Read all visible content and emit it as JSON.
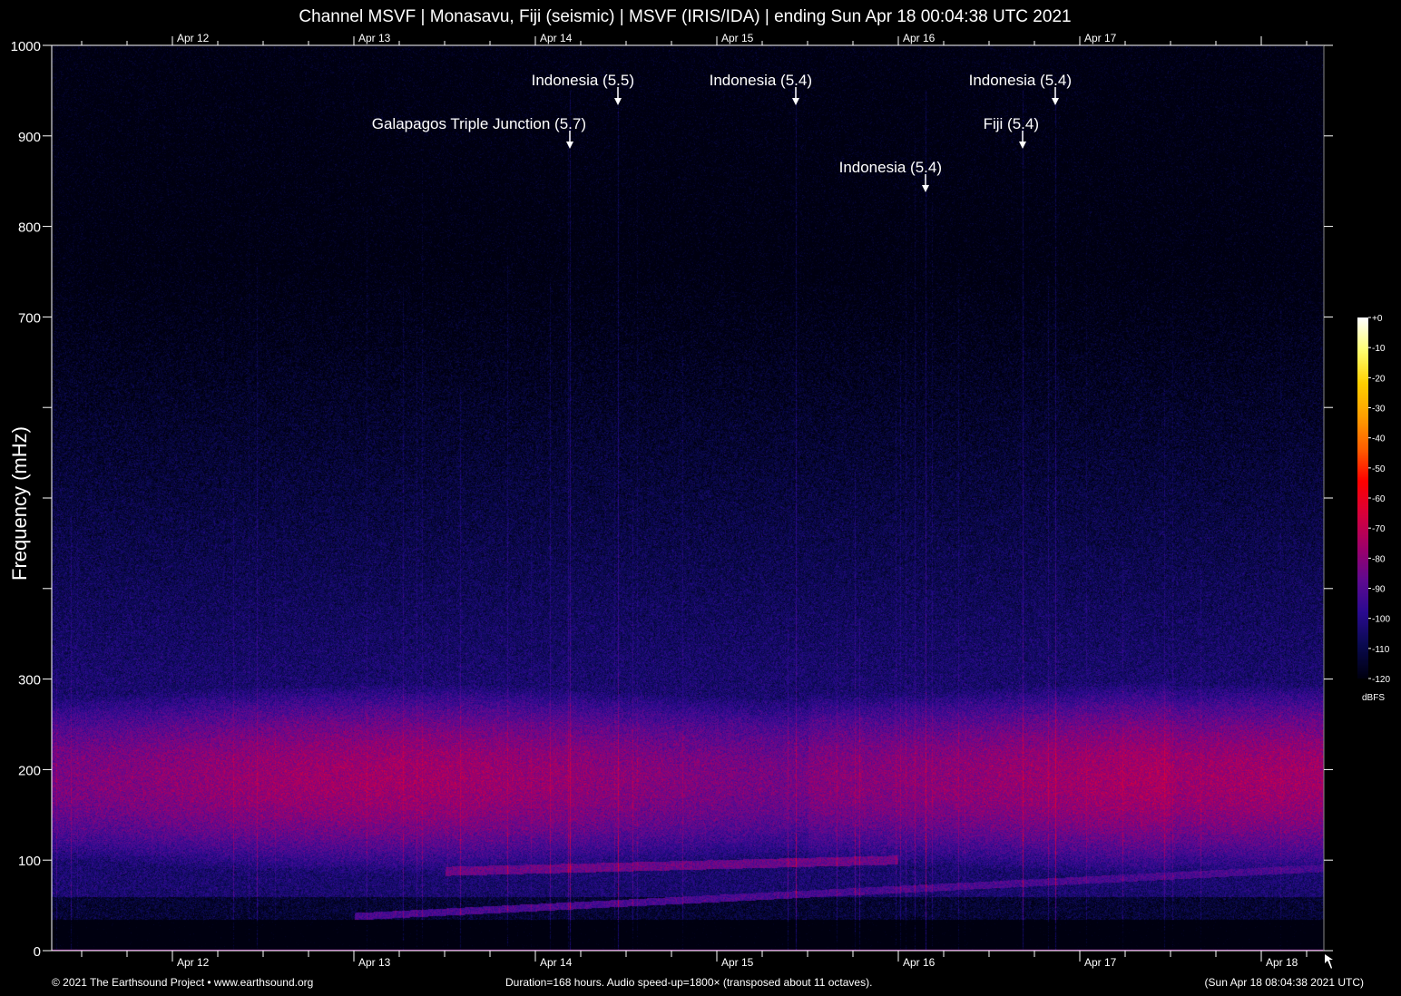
{
  "title": "Channel MSVF | Monasavu, Fiji (seismic) | MSVF (IRIS/IDA) | ending Sun Apr 18 00:04:38 UTC 2021",
  "footer": {
    "copyright": "© 2021 The Earthsound Project • www.earthsound.org",
    "info": "Duration=168 hours. Audio speed-up=1800× (transposed about 11 octaves).",
    "timestamp": "(Sun Apr 18 08:04:38 2021 UTC)"
  },
  "chart_data": {
    "type": "heatmap",
    "title": "Channel MSVF | Monasavu, Fiji (seismic) | MSVF (IRIS/IDA) | ending Sun Apr 18 00:04:38 UTC 2021",
    "ylabel": "Frequency (mHz)",
    "xlabel": "",
    "ylim": [
      0,
      1000
    ],
    "yticks": [
      0,
      100,
      200,
      300,
      400,
      500,
      600,
      700,
      800,
      900,
      1000
    ],
    "ytick_labels": [
      "0",
      "100",
      "200",
      "300",
      "",
      "",
      "",
      "700",
      "800",
      "900",
      "1000"
    ],
    "xlim_days_from_apr12": [
      -0.665,
      6.335
    ],
    "xticks": [
      "Apr 12",
      "Apr 13",
      "Apr 14",
      "Apr 15",
      "Apr 16",
      "Apr 17",
      "Apr 18"
    ],
    "xticks_top": [
      "Apr 12",
      "Apr 13",
      "Apr 14",
      "Apr 15",
      "Apr 16",
      "Apr 17"
    ],
    "colorbar": {
      "label": "dBFS",
      "ticks": [
        "+0",
        "-10",
        "-20",
        "-30",
        "-40",
        "-50",
        "-60",
        "-70",
        "-80",
        "-90",
        "-100",
        "-110",
        "-120"
      ],
      "range": [
        -120,
        0
      ],
      "colors": [
        "#000010",
        "#0a0a50",
        "#2a0a90",
        "#600a90",
        "#a0006a",
        "#d8003c",
        "#ff0000",
        "#ff6000",
        "#ffa000",
        "#ffd000",
        "#ffff70",
        "#ffffff"
      ]
    },
    "events": [
      {
        "label": "Galapagos Triple Junction (5.7)",
        "time": "Apr 14 04:30"
      },
      {
        "label": "Indonesia (5.5)",
        "time": "Apr 14 10:55"
      },
      {
        "label": "Indonesia (5.4)",
        "time": "Apr 15 10:25"
      },
      {
        "label": "Indonesia (5.4)",
        "time": "Apr 16 03:35"
      },
      {
        "label": "Fiji (5.4)",
        "time": "Apr 16 16:25"
      },
      {
        "label": "Indonesia (5.4)",
        "time": "Apr 16 20:45"
      }
    ],
    "features": {
      "microseism_band_mHz": [
        120,
        260
      ],
      "secondary_band_peak_dBFS": -80
    }
  }
}
